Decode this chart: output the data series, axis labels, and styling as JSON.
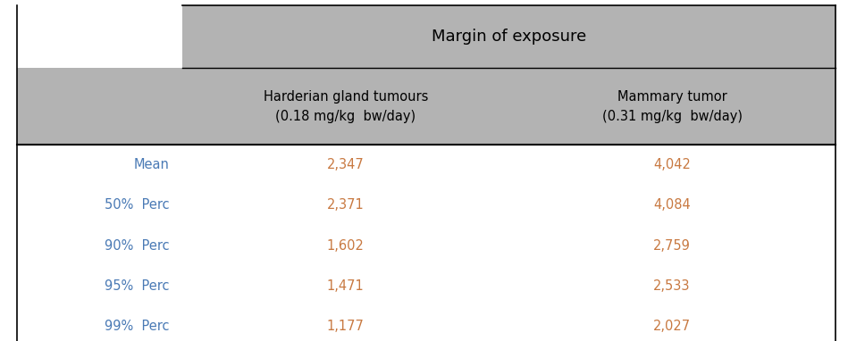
{
  "title": "Margin of exposure",
  "col_headers": [
    "Harderian gland tumours\n(0.18 mg/kg  bw/day)",
    "Mammary tumor\n(0.31 mg/kg  bw/day)"
  ],
  "row_labels": [
    "Mean",
    "50%  Perc",
    "90%  Perc",
    "95%  Perc",
    "99%  Perc"
  ],
  "col1_values": [
    "2,347",
    "2,371",
    "1,602",
    "1,471",
    "1,177"
  ],
  "col2_values": [
    "4,042",
    "4,084",
    "2,759",
    "2,533",
    "2,027"
  ],
  "header_bg": "#b3b3b3",
  "row_label_color": "#4a7ab5",
  "value_color": "#c87941",
  "header_text_color": "#000000",
  "bg_color": "#ffffff",
  "border_color": "#000000",
  "figsize": [
    9.49,
    3.82
  ],
  "dpi": 100
}
